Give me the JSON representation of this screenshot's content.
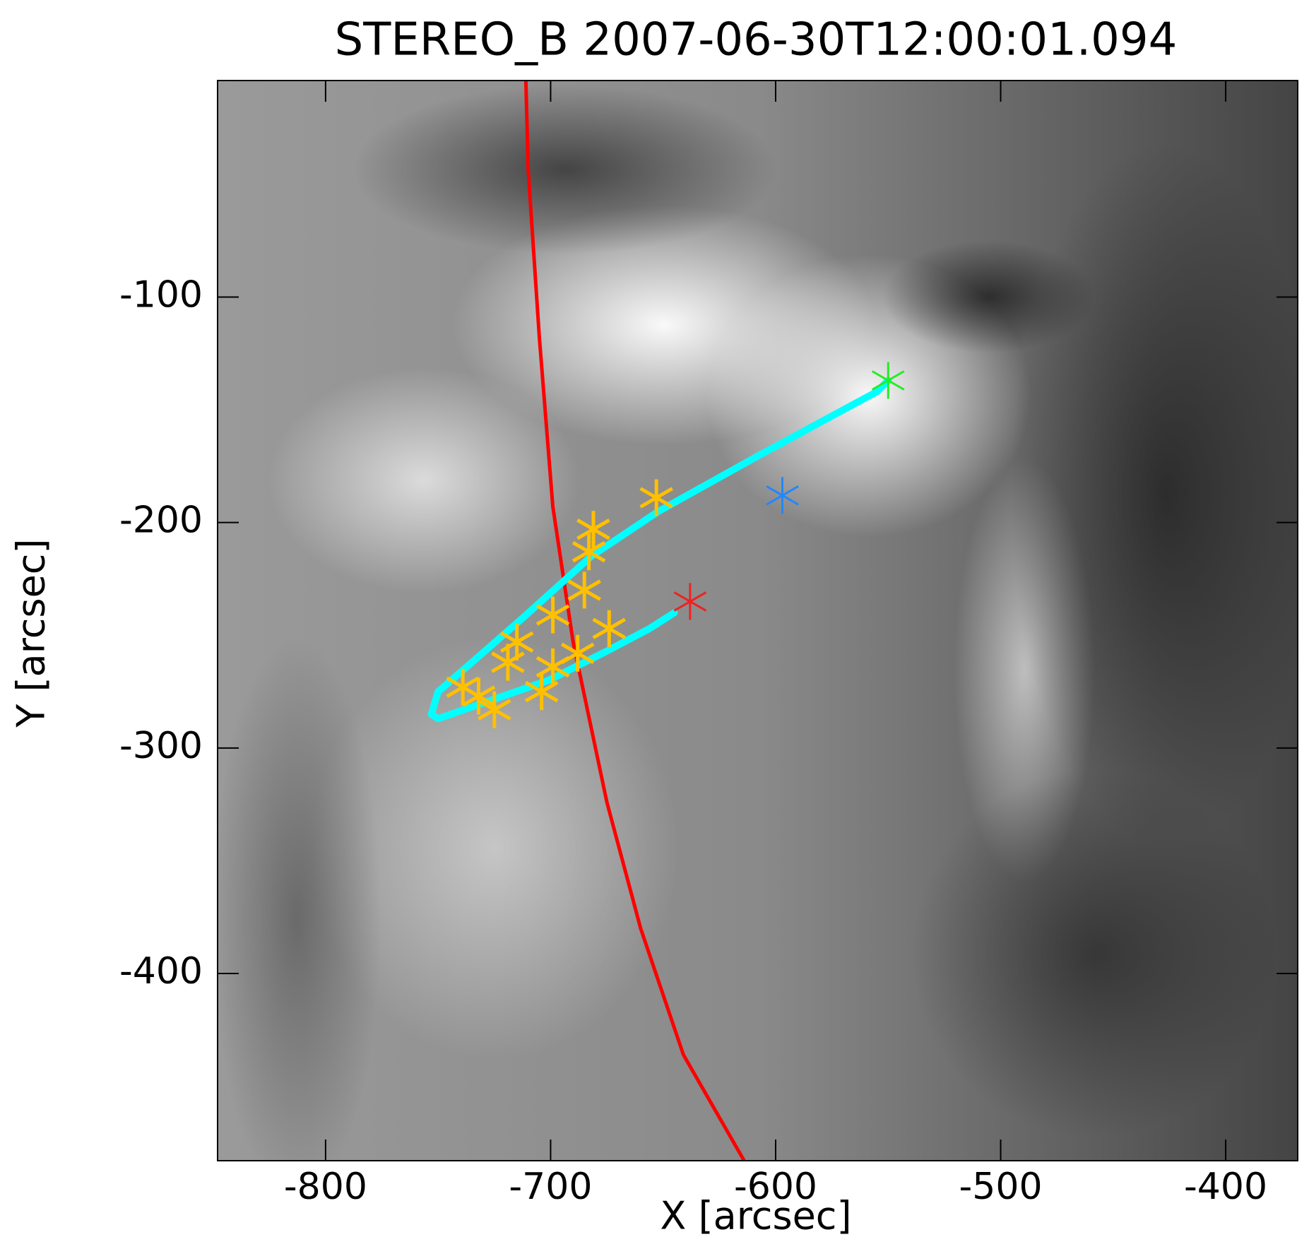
{
  "chart_data": {
    "type": "scatter",
    "title": "STEREO_B 2007-06-30T12:00:01.094",
    "x_label": "X [arcsec]",
    "y_label": "Y [arcsec]",
    "xlim": [
      -848,
      -368
    ],
    "ylim": [
      -483,
      -4
    ],
    "xticks": [
      -800,
      -700,
      -600,
      -500,
      -400
    ],
    "yticks": [
      -100,
      -200,
      -300,
      -400
    ],
    "series": [
      {
        "style": "line",
        "color": "#ff0000",
        "width": 5,
        "x": [
          -711,
          -710,
          -705,
          -699,
          -690,
          -675,
          -660,
          -641,
          -614
        ],
        "values": [
          -4,
          -43,
          -118,
          -193,
          -253,
          -324,
          -380,
          -436,
          -483
        ]
      },
      {
        "style": "line",
        "color": "#00ffff",
        "width": 10,
        "x": [
          -550,
          -555,
          -607,
          -652,
          -682,
          -712,
          -735,
          -750,
          -753,
          -750,
          -727,
          -701,
          -675,
          -656,
          -645
        ],
        "values": [
          -137,
          -142,
          -170,
          -195,
          -215,
          -242,
          -262,
          -275,
          -285,
          -287,
          -279,
          -270,
          -257,
          -247,
          -240
        ]
      },
      {
        "style": "asterisk",
        "color": "#ffc000",
        "width": 5,
        "x": [
          -653,
          -681,
          -683,
          -685,
          -699,
          -674,
          -688,
          -715,
          -719,
          -699,
          -704,
          -739,
          -732,
          -725
        ],
        "values": [
          -189,
          -203,
          -213,
          -230,
          -241,
          -247,
          -258,
          -253,
          -262,
          -264,
          -275,
          -273,
          -277,
          -283
        ]
      },
      {
        "style": "asterisk",
        "color": "#22ee22",
        "width": 3,
        "x": [
          -550
        ],
        "values": [
          -137
        ]
      },
      {
        "style": "asterisk",
        "color": "#2288ff",
        "width": 3,
        "x": [
          -597
        ],
        "values": [
          -188
        ]
      },
      {
        "style": "asterisk",
        "color": "#ee2222",
        "width": 3,
        "x": [
          -638
        ],
        "values": [
          -235
        ]
      }
    ]
  }
}
